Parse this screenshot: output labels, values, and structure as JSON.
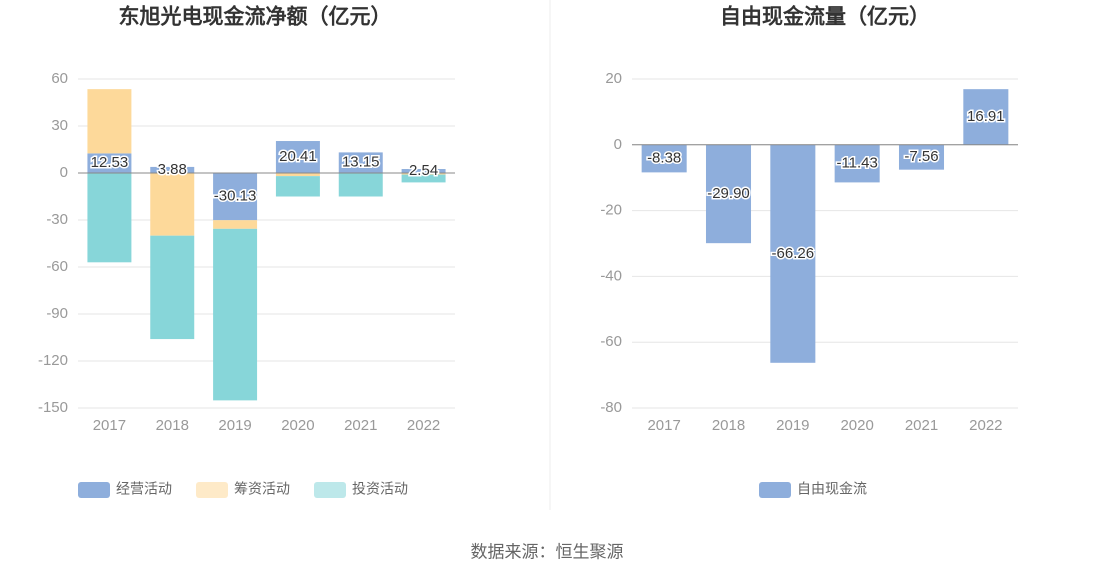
{
  "chart_data": [
    {
      "type": "bar",
      "title": "东旭光电现金流净额（亿元）",
      "stacked": true,
      "categories": [
        "2017",
        "2018",
        "2019",
        "2020",
        "2021",
        "2022"
      ],
      "series": [
        {
          "name": "经营活动",
          "color": "#8eaedc",
          "values": [
            12.53,
            3.88,
            -30.13,
            20.41,
            13.15,
            2.54
          ],
          "value_labels": [
            "12.53",
            "3.88",
            "-30.13",
            "20.41",
            "13.15",
            "2.54"
          ]
        },
        {
          "name": "筹资活动",
          "color": "#fdd99a",
          "values": [
            41,
            -40,
            -5.5,
            -2,
            0,
            -1
          ]
        },
        {
          "name": "投资活动",
          "color": "#87d6d9",
          "values": [
            -57,
            -66,
            -109.5,
            -13,
            -15,
            -5
          ]
        }
      ],
      "ylim": [
        -150,
        60
      ],
      "yticks": [
        -150,
        -120,
        -90,
        -60,
        -30,
        0,
        30,
        60
      ],
      "grid": true
    },
    {
      "type": "bar",
      "title": "自由现金流量（亿元）",
      "categories": [
        "2017",
        "2018",
        "2019",
        "2020",
        "2021",
        "2022"
      ],
      "series": [
        {
          "name": "自由现金流",
          "color": "#8eaedc",
          "values": [
            -8.38,
            -29.9,
            -66.26,
            -11.43,
            -7.56,
            16.91
          ],
          "value_labels": [
            "-8.38",
            "-29.90",
            "-66.26",
            "-11.43",
            "-7.56",
            "16.91"
          ]
        }
      ],
      "ylim": [
        -80,
        20
      ],
      "yticks": [
        -80,
        -60,
        -40,
        -20,
        0,
        20
      ],
      "grid": true
    }
  ],
  "source": "数据来源：恒生聚源"
}
